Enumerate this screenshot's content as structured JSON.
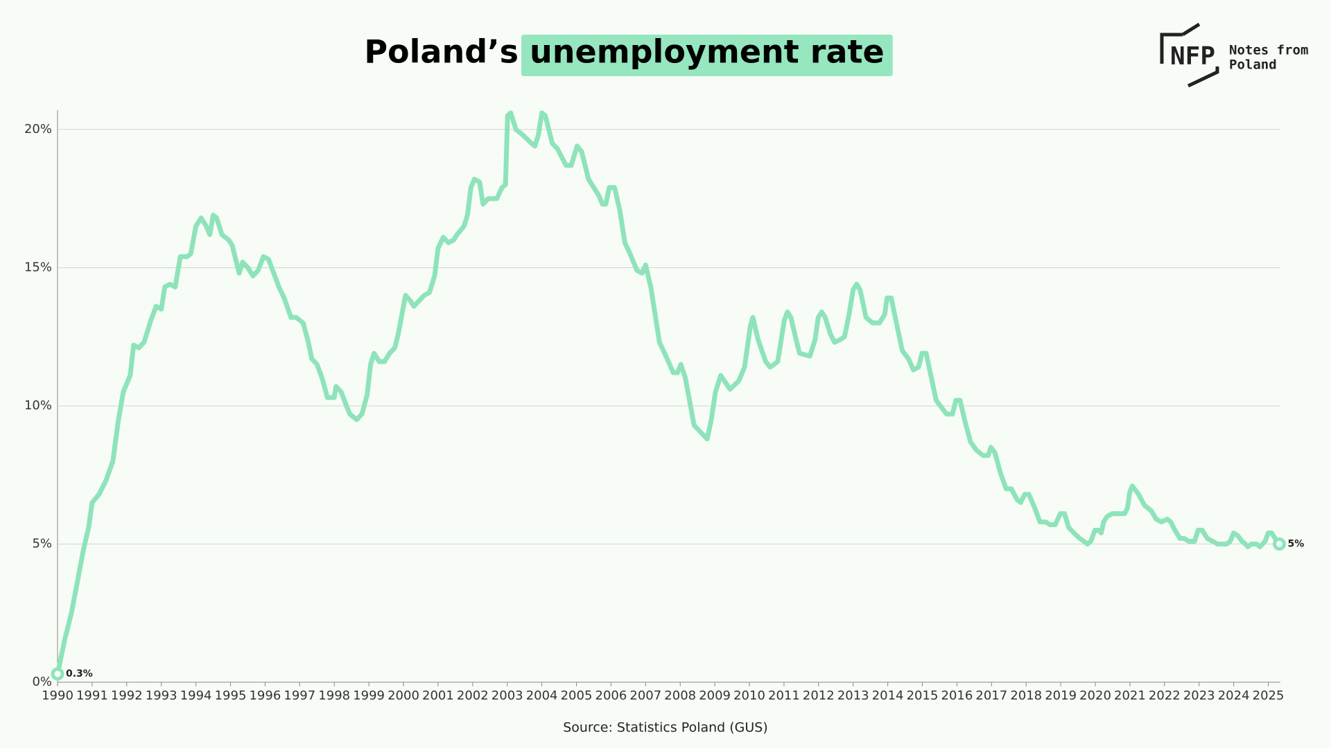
{
  "chart_data": {
    "type": "line",
    "title": "Poland’s",
    "title_highlight": "unemployment rate",
    "logo": {
      "mark": "NFP",
      "line1": "Notes from",
      "line2": "Poland"
    },
    "source": "Source: Statistics Poland (GUS)",
    "first_label": "0.3%",
    "last_label": "5%",
    "color": "#8fe3bb",
    "highlight_color": "#96e6bf",
    "grid": true,
    "xlim": [
      1990,
      2025.35
    ],
    "xticks": [
      1990,
      1991,
      1992,
      1993,
      1994,
      1995,
      1996,
      1997,
      1998,
      1999,
      2000,
      2001,
      2002,
      2003,
      2004,
      2005,
      2006,
      2007,
      2008,
      2009,
      2010,
      2011,
      2012,
      2013,
      2014,
      2015,
      2016,
      2017,
      2018,
      2019,
      2020,
      2021,
      2022,
      2023,
      2024,
      2025
    ],
    "ylim": [
      0,
      20.7
    ],
    "yticks": [
      {
        "value": 0,
        "label": "0%"
      },
      {
        "value": 5,
        "label": "5%"
      },
      {
        "value": 10,
        "label": "10%"
      },
      {
        "value": 15,
        "label": "15%"
      },
      {
        "value": 20,
        "label": "20%"
      }
    ],
    "x": [
      1990.0,
      1990.2,
      1990.4,
      1990.6,
      1990.75,
      1990.9,
      1991.0,
      1991.2,
      1991.4,
      1991.6,
      1991.75,
      1991.9,
      1992.1,
      1992.2,
      1992.35,
      1992.5,
      1992.7,
      1992.85,
      1993.0,
      1993.1,
      1993.25,
      1993.4,
      1993.55,
      1993.75,
      1993.85,
      1994.0,
      1994.15,
      1994.3,
      1994.4,
      1994.5,
      1994.6,
      1994.75,
      1994.95,
      1995.05,
      1995.15,
      1995.25,
      1995.35,
      1995.5,
      1995.65,
      1995.8,
      1995.95,
      1996.1,
      1996.4,
      1996.55,
      1996.75,
      1996.9,
      1997.1,
      1997.25,
      1997.35,
      1997.5,
      1997.65,
      1997.8,
      1998.0,
      1998.05,
      1998.2,
      1998.35,
      1998.45,
      1998.65,
      1998.8,
      1998.95,
      1999.05,
      1999.15,
      1999.3,
      1999.45,
      1999.6,
      1999.75,
      1999.85,
      2000.0,
      2000.06,
      2000.2,
      2000.3,
      2000.45,
      2000.6,
      2000.75,
      2000.9,
      2001.0,
      2001.15,
      2001.3,
      2001.45,
      2001.55,
      2001.75,
      2001.85,
      2001.95,
      2002.05,
      2002.2,
      2002.3,
      2002.45,
      2002.7,
      2002.85,
      2002.95,
      2003.01,
      2003.1,
      2003.25,
      2003.45,
      2003.7,
      2003.8,
      2003.9,
      2004.0,
      2004.1,
      2004.3,
      2004.45,
      2004.7,
      2004.85,
      2005.02,
      2005.15,
      2005.35,
      2005.5,
      2005.65,
      2005.75,
      2005.85,
      2005.95,
      2006.1,
      2006.25,
      2006.4,
      2006.55,
      2006.75,
      2006.9,
      2007.0,
      2007.15,
      2007.4,
      2007.55,
      2007.8,
      2007.92,
      2008.02,
      2008.15,
      2008.4,
      2008.55,
      2008.78,
      2008.9,
      2009.02,
      2009.17,
      2009.44,
      2009.69,
      2009.86,
      2010.03,
      2010.1,
      2010.25,
      2010.47,
      2010.6,
      2010.82,
      2011.01,
      2011.1,
      2011.2,
      2011.33,
      2011.45,
      2011.75,
      2011.9,
      2011.99,
      2012.09,
      2012.19,
      2012.34,
      2012.46,
      2012.63,
      2012.75,
      2012.88,
      2013.0,
      2013.1,
      2013.2,
      2013.37,
      2013.56,
      2013.76,
      2013.91,
      2013.98,
      2014.1,
      2014.3,
      2014.42,
      2014.6,
      2014.74,
      2014.89,
      2014.99,
      2015.11,
      2015.28,
      2015.4,
      2015.58,
      2015.7,
      2015.87,
      2015.97,
      2016.09,
      2016.24,
      2016.39,
      2016.56,
      2016.76,
      2016.9,
      2016.98,
      2017.1,
      2017.25,
      2017.42,
      2017.57,
      2017.74,
      2017.84,
      2017.96,
      2018.08,
      2018.25,
      2018.4,
      2018.57,
      2018.69,
      2018.84,
      2018.99,
      2019.11,
      2019.23,
      2019.38,
      2019.55,
      2019.67,
      2019.77,
      2019.87,
      2019.99,
      2020.09,
      2020.17,
      2020.24,
      2020.34,
      2020.49,
      2020.68,
      2020.85,
      2020.93,
      2021.0,
      2021.07,
      2021.25,
      2021.42,
      2021.62,
      2021.76,
      2021.91,
      2022.08,
      2022.18,
      2022.3,
      2022.45,
      2022.57,
      2022.7,
      2022.87,
      2022.97,
      2023.09,
      2023.24,
      2023.39,
      2023.53,
      2023.8,
      2023.9,
      2024.0,
      2024.12,
      2024.24,
      2024.34,
      2024.41,
      2024.51,
      2024.66,
      2024.76,
      2024.91,
      2025.0,
      2025.1,
      2025.2,
      2025.32
    ],
    "values": [
      0.3,
      1.5,
      2.5,
      3.8,
      4.8,
      5.6,
      6.5,
      6.8,
      7.3,
      8.0,
      9.4,
      10.5,
      11.1,
      12.2,
      12.1,
      12.3,
      13.1,
      13.6,
      13.5,
      14.3,
      14.4,
      14.3,
      15.4,
      15.4,
      15.5,
      16.5,
      16.8,
      16.5,
      16.2,
      16.9,
      16.8,
      16.2,
      16.0,
      15.8,
      15.3,
      14.8,
      15.2,
      15.0,
      14.7,
      14.9,
      15.4,
      15.3,
      14.3,
      13.9,
      13.2,
      13.2,
      13.0,
      12.3,
      11.7,
      11.5,
      11.0,
      10.3,
      10.3,
      10.7,
      10.5,
      10.0,
      9.7,
      9.5,
      9.7,
      10.4,
      11.5,
      11.9,
      11.6,
      11.6,
      11.9,
      12.1,
      12.6,
      13.6,
      14.0,
      13.8,
      13.6,
      13.8,
      14.0,
      14.1,
      14.7,
      15.7,
      16.1,
      15.9,
      16.0,
      16.2,
      16.5,
      16.9,
      17.9,
      18.2,
      18.1,
      17.3,
      17.5,
      17.5,
      17.9,
      18.0,
      20.5,
      20.6,
      20.0,
      19.8,
      19.5,
      19.4,
      19.8,
      20.6,
      20.5,
      19.5,
      19.3,
      18.7,
      18.7,
      19.4,
      19.2,
      18.2,
      17.9,
      17.6,
      17.3,
      17.3,
      17.9,
      17.9,
      17.1,
      15.9,
      15.5,
      14.9,
      14.8,
      15.1,
      14.3,
      12.3,
      11.9,
      11.2,
      11.2,
      11.5,
      11.0,
      9.3,
      9.1,
      8.8,
      9.5,
      10.5,
      11.1,
      10.6,
      10.9,
      11.4,
      12.9,
      13.2,
      12.4,
      11.6,
      11.4,
      11.6,
      13.1,
      13.4,
      13.2,
      12.5,
      11.9,
      11.8,
      12.4,
      13.2,
      13.4,
      13.2,
      12.6,
      12.3,
      12.4,
      12.5,
      13.3,
      14.2,
      14.4,
      14.2,
      13.2,
      13.0,
      13.0,
      13.3,
      13.9,
      13.9,
      12.7,
      12.0,
      11.7,
      11.3,
      11.4,
      11.9,
      11.9,
      10.9,
      10.2,
      9.9,
      9.7,
      9.7,
      10.2,
      10.2,
      9.4,
      8.7,
      8.4,
      8.2,
      8.2,
      8.5,
      8.3,
      7.6,
      7.0,
      7.0,
      6.6,
      6.5,
      6.8,
      6.8,
      6.3,
      5.8,
      5.8,
      5.7,
      5.7,
      6.1,
      6.1,
      5.6,
      5.4,
      5.2,
      5.1,
      5.0,
      5.1,
      5.5,
      5.5,
      5.4,
      5.8,
      6.0,
      6.1,
      6.1,
      6.1,
      6.3,
      6.9,
      7.1,
      6.8,
      6.4,
      6.2,
      5.9,
      5.8,
      5.9,
      5.8,
      5.5,
      5.2,
      5.2,
      5.1,
      5.1,
      5.5,
      5.5,
      5.2,
      5.1,
      5.0,
      5.0,
      5.1,
      5.4,
      5.3,
      5.1,
      5.0,
      4.9,
      5.0,
      5.0,
      4.9,
      5.1,
      5.4,
      5.4,
      5.2,
      5.0
    ]
  }
}
